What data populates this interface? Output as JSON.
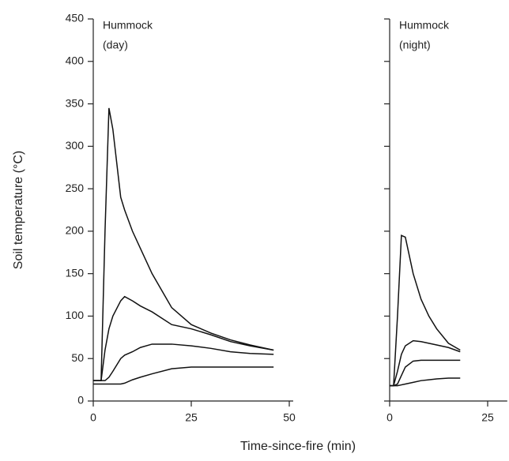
{
  "chart_data": [
    {
      "type": "line",
      "annotation": [
        "Hummock",
        "(day)"
      ],
      "ylabel": "Soil temperature (°C)",
      "xlabel": "Time-since-fire (min)",
      "x": [
        0,
        2,
        3,
        4,
        5,
        7,
        8,
        10,
        12,
        15,
        20,
        25,
        30,
        35,
        40,
        46
      ],
      "series": [
        {
          "color": "#111111",
          "values": [
            24,
            24,
            200,
            345,
            320,
            240,
            225,
            200,
            180,
            150,
            110,
            90,
            80,
            72,
            66,
            60
          ]
        },
        {
          "color": "#111111",
          "values": [
            24,
            24,
            60,
            85,
            100,
            118,
            123,
            118,
            112,
            105,
            90,
            85,
            78,
            70,
            65,
            60
          ]
        },
        {
          "color": "#111111",
          "values": [
            24,
            24,
            24,
            28,
            35,
            50,
            54,
            58,
            63,
            67,
            67,
            65,
            62,
            58,
            56,
            55
          ]
        },
        {
          "color": "#111111",
          "values": [
            20,
            20,
            20,
            20,
            20,
            20,
            21,
            25,
            28,
            32,
            38,
            40,
            40,
            40,
            40,
            40
          ]
        }
      ],
      "xlim": [
        0,
        51
      ],
      "xticks": [
        0,
        25,
        50
      ],
      "ylim": [
        0,
        450
      ],
      "yticks": [
        0,
        50,
        100,
        150,
        200,
        250,
        300,
        350,
        400,
        450
      ],
      "ytick_labels": true
    },
    {
      "type": "line",
      "annotation": [
        "Hummock",
        "(night)"
      ],
      "x": [
        0,
        1,
        2,
        3,
        4,
        6,
        8,
        10,
        12,
        15,
        18
      ],
      "series": [
        {
          "color": "#111111",
          "values": [
            18,
            18,
            100,
            195,
            193,
            150,
            120,
            100,
            85,
            68,
            60
          ]
        },
        {
          "color": "#111111",
          "values": [
            18,
            18,
            35,
            55,
            65,
            71,
            70,
            68,
            66,
            63,
            58
          ]
        },
        {
          "color": "#111111",
          "values": [
            18,
            18,
            20,
            30,
            40,
            47,
            48,
            48,
            48,
            48,
            48
          ]
        },
        {
          "color": "#111111",
          "values": [
            18,
            18,
            18,
            19,
            20,
            22,
            24,
            25,
            26,
            27,
            27
          ]
        }
      ],
      "xlim": [
        0,
        30
      ],
      "xticks": [
        0,
        25
      ],
      "ylim": [
        0,
        450
      ],
      "yticks": [
        0,
        50,
        100,
        150,
        200,
        250,
        300,
        350,
        400,
        450
      ],
      "ytick_labels": false
    }
  ]
}
